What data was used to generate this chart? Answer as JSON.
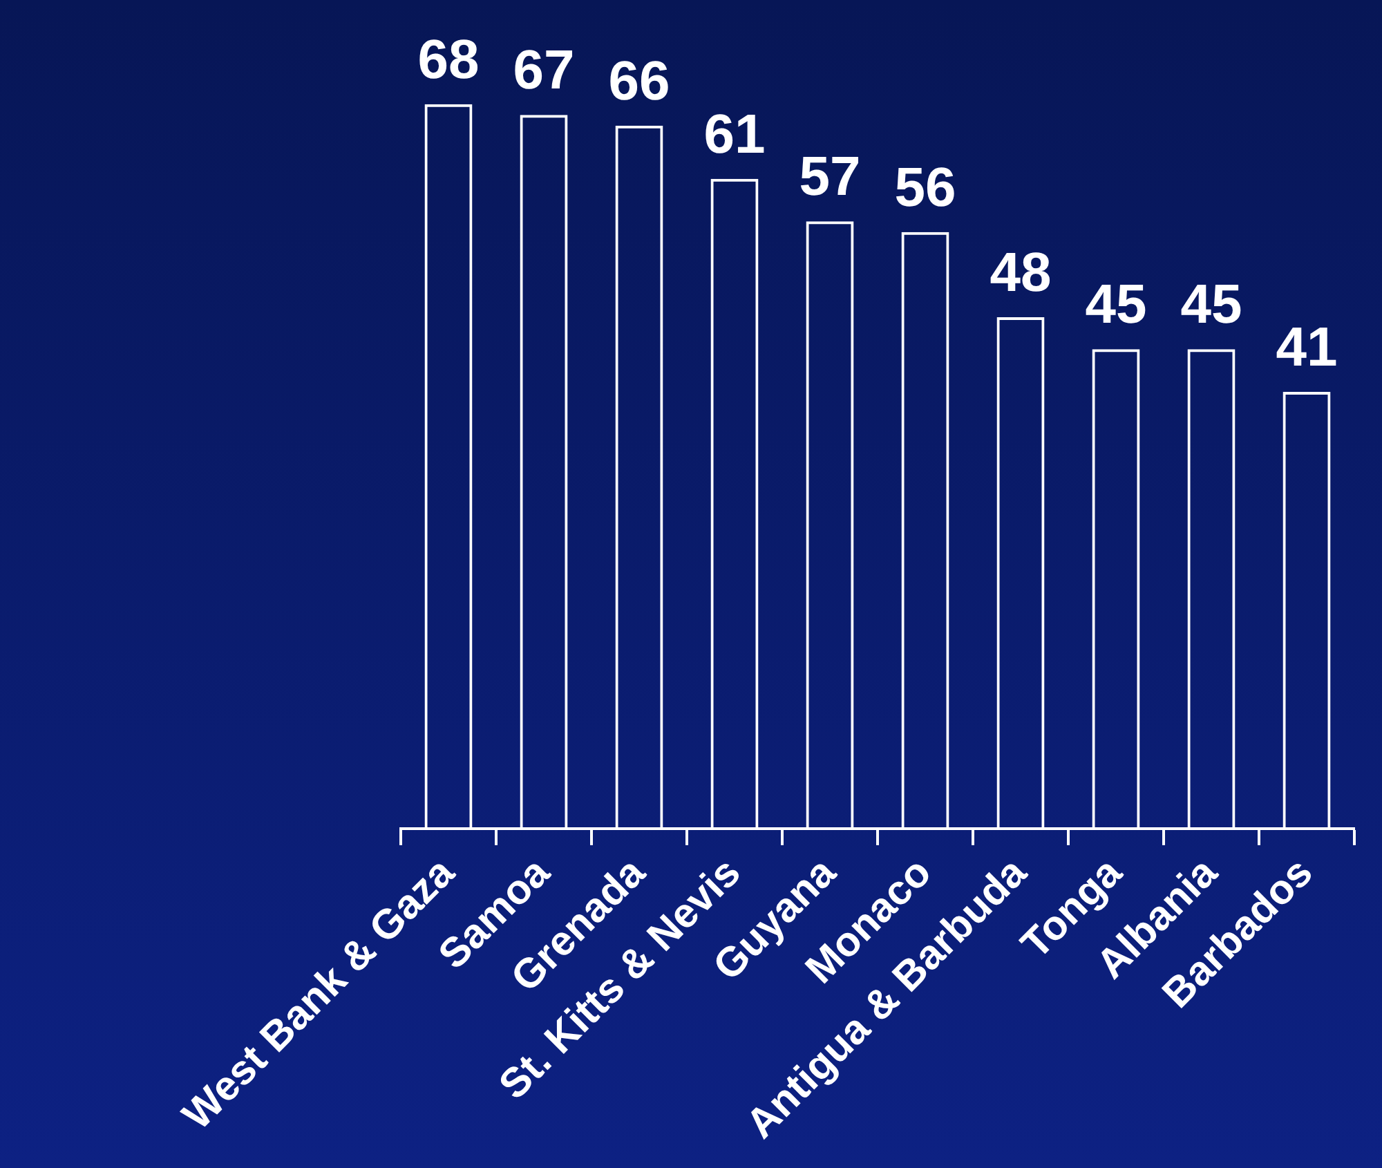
{
  "chart_data": {
    "type": "bar",
    "categories": [
      "West Bank & Gaza",
      "Samoa",
      "Grenada",
      "St. Kitts & Nevis",
      "Guyana",
      "Monaco",
      "Antigua & Barbuda",
      "Tonga",
      "Albania",
      "Barbados"
    ],
    "values": [
      68,
      67,
      66,
      61,
      57,
      56,
      48,
      45,
      45,
      41
    ],
    "color": "#ffffff",
    "data_labels": true,
    "grid": false,
    "legend": false
  }
}
